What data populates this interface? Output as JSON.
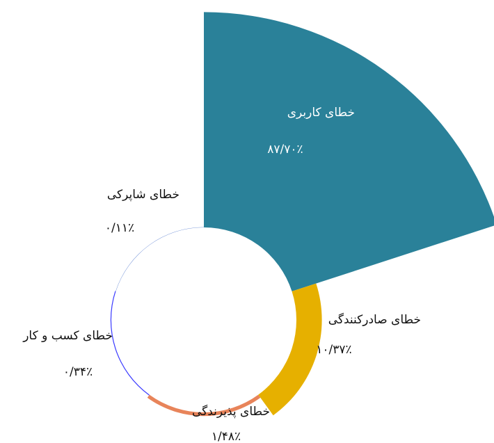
{
  "chart_data": {
    "type": "rose",
    "categories": [
      "خطای کاربری",
      "خطای صادرکنندگی",
      "خطای پذیرندگی",
      "خطای کسب و کار",
      "خطای شاپرکی"
    ],
    "values": [
      87.7,
      10.37,
      1.48,
      0.34,
      0.11
    ],
    "value_labels": [
      "۸۷/۷۰٪",
      "۱۰/۳۷٪",
      "۱/۴۸٪",
      "۰/۳۴٪",
      "۰/۱۱٪"
    ],
    "colors": [
      "#2a8199",
      "#e6b000",
      "#e8845a",
      "#3a3aff",
      "#5a7fd0"
    ]
  }
}
